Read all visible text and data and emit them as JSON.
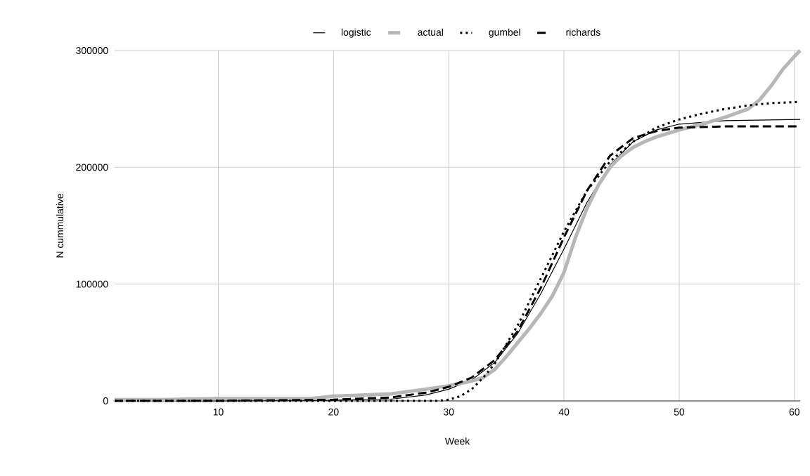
{
  "chart_data": {
    "type": "line",
    "xlabel": "Week",
    "ylabel": "N cummulative",
    "xlim": [
      1,
      60.5
    ],
    "ylim": [
      0,
      300000
    ],
    "xticks": [
      10,
      20,
      30,
      40,
      50,
      60
    ],
    "yticks": [
      0,
      100000,
      200000,
      300000
    ],
    "grid": true,
    "legend": "top",
    "marker": "none",
    "series": [
      {
        "name": "logistic",
        "color": "#000000",
        "line_style": "solid",
        "x": [
          1,
          10,
          20,
          25,
          28,
          30,
          32,
          34,
          36,
          38,
          40,
          42,
          44,
          46,
          48,
          50,
          54,
          60.5
        ],
        "values": [
          0,
          0,
          500,
          1500,
          5000,
          10000,
          18000,
          33000,
          58000,
          92000,
          130000,
          170000,
          202000,
          222000,
          232000,
          237000,
          240000,
          241000
        ]
      },
      {
        "name": "actual",
        "color": "#b7b7b7",
        "line_style": "solid",
        "x": [
          1,
          5,
          10,
          15,
          18,
          20,
          25,
          28,
          30,
          32,
          33,
          34,
          35,
          36,
          37,
          38,
          39,
          40,
          41,
          42,
          43,
          44,
          45,
          46,
          47,
          48,
          50,
          52,
          54,
          56,
          57,
          58,
          59,
          60,
          60.5
        ],
        "values": [
          1000,
          1000,
          2000,
          2000,
          2000,
          4000,
          6000,
          10000,
          13000,
          17000,
          20000,
          27000,
          38000,
          50000,
          62000,
          75000,
          90000,
          110000,
          140000,
          165000,
          185000,
          200000,
          210000,
          217000,
          222000,
          226000,
          232000,
          237000,
          243000,
          250000,
          258000,
          270000,
          284000,
          295000,
          300000
        ]
      },
      {
        "name": "gumbel",
        "color": "#000000",
        "line_style": "dotted",
        "x": [
          1,
          20,
          29,
          30,
          31,
          32,
          33,
          34,
          36,
          38,
          40,
          42,
          44,
          46,
          48,
          50,
          52,
          54,
          56,
          58,
          60.5
        ],
        "values": [
          0,
          0,
          0,
          1000,
          4000,
          10000,
          20000,
          32000,
          65000,
          105000,
          145000,
          180000,
          205000,
          222000,
          234000,
          241000,
          246000,
          250000,
          253000,
          255000,
          256000
        ]
      },
      {
        "name": "richards",
        "color": "#000000",
        "line_style": "dashed",
        "x": [
          1,
          10,
          20,
          25,
          28,
          30,
          32,
          34,
          36,
          38,
          40,
          42,
          44,
          46,
          48,
          50,
          54,
          60.5
        ],
        "values": [
          0,
          0,
          1000,
          3000,
          7000,
          12000,
          20000,
          35000,
          60000,
          97000,
          140000,
          180000,
          210000,
          225000,
          231000,
          234000,
          235000,
          235000
        ]
      }
    ]
  }
}
